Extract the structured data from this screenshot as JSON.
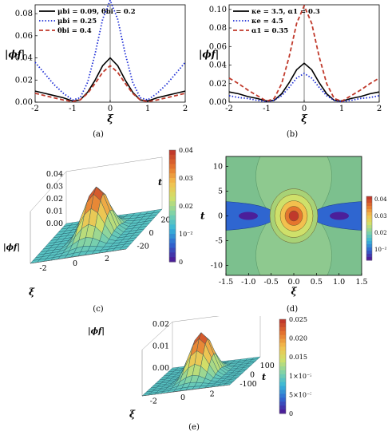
{
  "captions": [
    "(a)",
    "(b)",
    "(c)",
    "(d)",
    "(e)"
  ],
  "colors": {
    "black": "#000000",
    "blue": "#1f2fd6",
    "red": "#c0392b",
    "orange": "#d98a2b",
    "colormap": [
      "#4b1f9a",
      "#2f66d0",
      "#38b6d8",
      "#7fd2a8",
      "#cfe06a",
      "#f3c04e",
      "#e5762e",
      "#c0392b"
    ]
  },
  "chart_data": [
    {
      "id": "a",
      "type": "line",
      "xlabel": "ξ",
      "ylabel": "|ϕf|",
      "xlim": [
        -2,
        2
      ],
      "ylim": [
        0,
        0.088
      ],
      "xticks": [
        "-2",
        "-1",
        "0",
        "1",
        "2"
      ],
      "xtick_values": [
        -2,
        -1,
        0,
        1,
        2
      ],
      "yticks": [
        "0.00",
        "0.02",
        "0.04",
        "0.06",
        "0.08"
      ],
      "ytick_values": [
        0,
        0.02,
        0.04,
        0.06,
        0.08
      ],
      "legend_position": "top-left",
      "x": [
        -2,
        -1.75,
        -1.5,
        -1.25,
        -1,
        -0.8,
        -0.6,
        -0.4,
        -0.2,
        0,
        0.2,
        0.4,
        0.6,
        0.8,
        1,
        1.25,
        1.5,
        1.75,
        2
      ],
      "series": [
        {
          "name": "μbi = 0.09, θbi = 0.2",
          "style": "solid",
          "color": "black",
          "values": [
            0.01,
            0.008,
            0.006,
            0.004,
            0.001,
            0.002,
            0.009,
            0.02,
            0.033,
            0.04,
            0.033,
            0.02,
            0.009,
            0.002,
            0.001,
            0.004,
            0.006,
            0.008,
            0.01
          ]
        },
        {
          "name": "μbi = 0.25",
          "style": "dotted",
          "color": "blue",
          "values": [
            0.036,
            0.026,
            0.016,
            0.008,
            0.002,
            0.004,
            0.018,
            0.044,
            0.075,
            0.092,
            0.075,
            0.044,
            0.018,
            0.004,
            0.002,
            0.008,
            0.016,
            0.026,
            0.036
          ]
        },
        {
          "name": "θbi = 0.4",
          "style": "dashed",
          "color": "red",
          "values": [
            0.008,
            0.006,
            0.004,
            0.002,
            0.0005,
            0.002,
            0.008,
            0.017,
            0.027,
            0.033,
            0.027,
            0.017,
            0.008,
            0.002,
            0.0005,
            0.002,
            0.004,
            0.006,
            0.008
          ]
        }
      ]
    },
    {
      "id": "b",
      "type": "line",
      "xlabel": "ξ",
      "ylabel": "|ϕf|",
      "xlim": [
        -2,
        2
      ],
      "ylim": [
        0,
        0.105
      ],
      "xticks": [
        "-2",
        "-1",
        "0",
        "1",
        "2"
      ],
      "xtick_values": [
        -2,
        -1,
        0,
        1,
        2
      ],
      "yticks": [
        "0.00",
        "0.02",
        "0.04",
        "0.06",
        "0.08",
        "0.10"
      ],
      "ytick_values": [
        0,
        0.02,
        0.04,
        0.06,
        0.08,
        0.1
      ],
      "legend_position": "top-left",
      "x": [
        -2,
        -1.75,
        -1.5,
        -1.25,
        -1,
        -0.8,
        -0.6,
        -0.4,
        -0.2,
        0,
        0.2,
        0.4,
        0.6,
        0.8,
        1,
        1.25,
        1.5,
        1.75,
        2
      ],
      "series": [
        {
          "name": "κe = 3.5, α1 = 0.3",
          "style": "solid",
          "color": "black",
          "values": [
            0.011,
            0.009,
            0.006,
            0.004,
            0.001,
            0.002,
            0.009,
            0.021,
            0.035,
            0.042,
            0.035,
            0.021,
            0.009,
            0.002,
            0.001,
            0.004,
            0.006,
            0.009,
            0.011
          ]
        },
        {
          "name": "κe = 4.5",
          "style": "dotted",
          "color": "blue",
          "values": [
            0.007,
            0.005,
            0.004,
            0.002,
            0.0005,
            0.002,
            0.007,
            0.016,
            0.026,
            0.031,
            0.026,
            0.016,
            0.007,
            0.002,
            0.0005,
            0.002,
            0.004,
            0.005,
            0.007
          ]
        },
        {
          "name": "α1 = 0.35",
          "style": "dashed",
          "color": "red",
          "values": [
            0.026,
            0.02,
            0.013,
            0.007,
            0.001,
            0.004,
            0.02,
            0.049,
            0.085,
            0.104,
            0.085,
            0.049,
            0.02,
            0.004,
            0.001,
            0.007,
            0.013,
            0.02,
            0.026
          ]
        }
      ]
    },
    {
      "id": "c",
      "type": "surface",
      "xlabel": "ξ",
      "ylabel": "t",
      "zlabel": "|ϕf|",
      "xticks": [
        "-2",
        "0",
        "2"
      ],
      "yticks": [
        "-20",
        "0",
        "20"
      ],
      "zticks": [
        "0.00",
        "0.01",
        "0.02",
        "0.03",
        "0.04"
      ],
      "colorbar_ticks": [
        "0.04",
        "0.03",
        "0.02",
        "10⁻²",
        "0"
      ],
      "peak": 0.04
    },
    {
      "id": "d",
      "type": "contour",
      "xlabel": "ξ",
      "ylabel": "t",
      "xlim": [
        -1.5,
        1.5
      ],
      "ylim": [
        -12,
        12
      ],
      "xticks": [
        "-1.5",
        "-1.0",
        "-0.5",
        "0.0",
        "0.5",
        "1.0",
        "1.5"
      ],
      "xtick_values": [
        -1.5,
        -1.0,
        -0.5,
        0.0,
        0.5,
        1.0,
        1.5
      ],
      "yticks": [
        "-10",
        "-5",
        "0",
        "5",
        "10"
      ],
      "ytick_values": [
        -10,
        -5,
        0,
        5,
        10
      ],
      "colorbar_ticks": [
        "0.04",
        "0.03",
        "0.02",
        "10⁻²"
      ]
    },
    {
      "id": "e",
      "type": "surface",
      "xlabel": "ξ",
      "ylabel": "t",
      "zlabel": "|ϕf|",
      "xticks": [
        "-2",
        "0",
        "2"
      ],
      "yticks": [
        "-100",
        "0",
        "100"
      ],
      "zticks": [
        "0.00",
        "0.01",
        "0.02"
      ],
      "colorbar_ticks": [
        "0.025",
        "0.020",
        "0.015",
        "1×10⁻²",
        "5×10⁻³",
        "0"
      ],
      "peak": 0.028
    }
  ]
}
